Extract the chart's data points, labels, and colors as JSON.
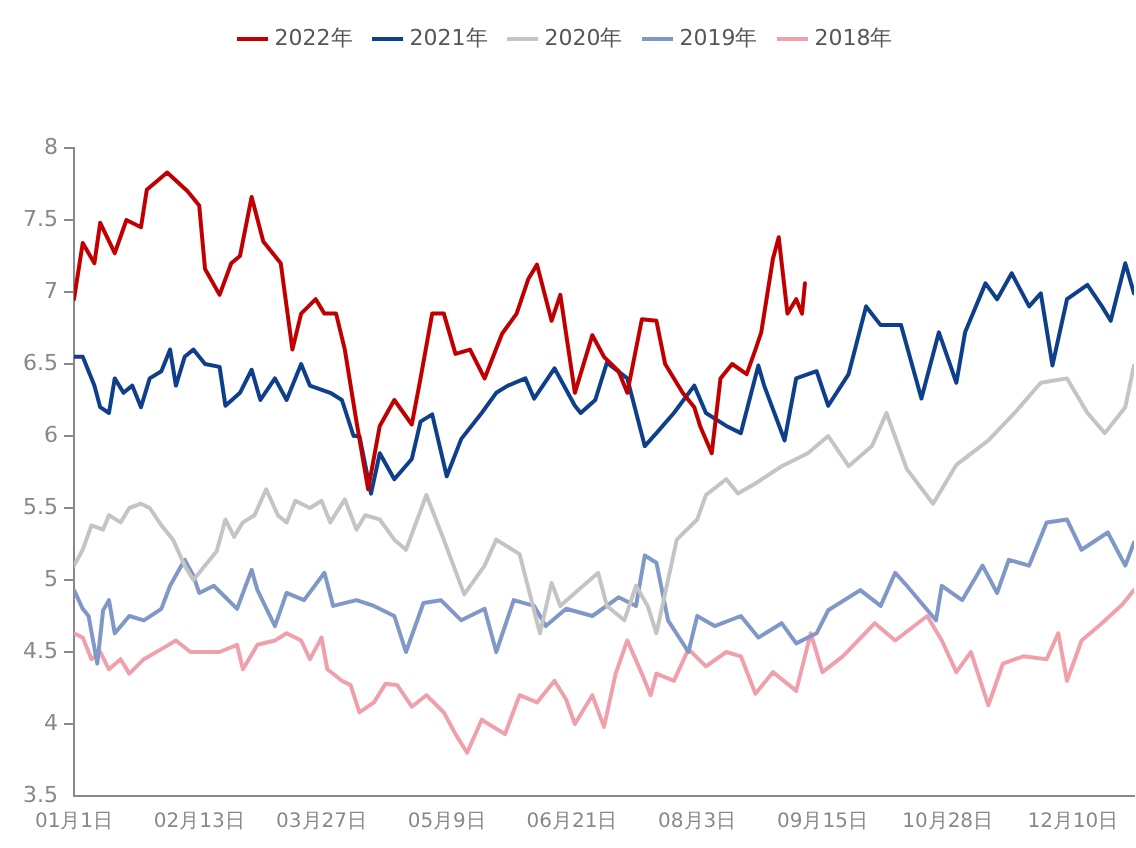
{
  "chart_data": {
    "type": "line",
    "legend": "top",
    "grid": false,
    "marker": "none",
    "line_style": "solid",
    "xlim": [
      "--01-01",
      "--12-31"
    ],
    "xticks": [
      {
        "value": "--01-01",
        "label": "01月1日"
      },
      {
        "value": "--02-13",
        "label": "02月13日"
      },
      {
        "value": "--03-27",
        "label": "03月27日"
      },
      {
        "value": "--05-09",
        "label": "05月9日"
      },
      {
        "value": "--06-21",
        "label": "06月21日"
      },
      {
        "value": "--08-03",
        "label": "08月3日"
      },
      {
        "value": "--09-15",
        "label": "09月15日"
      },
      {
        "value": "--10-28",
        "label": "10月28日"
      },
      {
        "value": "--12-10",
        "label": "12月10日"
      }
    ],
    "ylim": [
      3.5,
      8
    ],
    "yticks": [
      3.5,
      4,
      4.5,
      5,
      5.5,
      6,
      6.5,
      7,
      7.5,
      8
    ],
    "series": [
      {
        "name": "2022年",
        "color": "#c00000",
        "x": [
          "--01-01",
          "--01-04",
          "--01-08",
          "--01-10",
          "--01-15",
          "--01-19",
          "--01-24",
          "--01-26",
          "--02-02",
          "--02-09",
          "--02-13",
          "--02-15",
          "--02-20",
          "--02-24",
          "--02-27",
          "--03-03",
          "--03-07",
          "--03-13",
          "--03-17",
          "--03-20",
          "--03-25",
          "--03-28",
          "--04-01",
          "--04-04",
          "--04-08",
          "--04-12",
          "--04-16",
          "--04-21",
          "--04-27",
          "--04-30",
          "--05-04",
          "--05-08",
          "--05-12",
          "--05-17",
          "--05-22",
          "--05-28",
          "--06-02",
          "--06-06",
          "--06-09",
          "--06-14",
          "--06-17",
          "--06-22",
          "--06-28",
          "--07-02",
          "--07-07",
          "--07-10",
          "--07-15",
          "--07-20",
          "--07-23",
          "--07-29",
          "--08-02",
          "--08-04",
          "--08-08",
          "--08-11",
          "--08-15",
          "--08-20",
          "--08-23",
          "--08-25",
          "--08-29",
          "--08-31",
          "--09-03",
          "--09-06",
          "--09-08",
          "--09-09"
        ],
        "values": [
          6.95,
          7.34,
          7.2,
          7.48,
          7.27,
          7.5,
          7.45,
          7.71,
          7.83,
          7.7,
          7.6,
          7.16,
          6.98,
          7.2,
          7.25,
          7.66,
          7.35,
          7.2,
          6.6,
          6.85,
          6.95,
          6.85,
          6.85,
          6.6,
          6.1,
          5.63,
          6.07,
          6.25,
          6.08,
          6.4,
          6.85,
          6.85,
          6.57,
          6.6,
          6.4,
          6.71,
          6.85,
          7.09,
          7.19,
          6.8,
          6.98,
          6.3,
          6.7,
          6.55,
          6.45,
          6.3,
          6.81,
          6.8,
          6.5,
          6.3,
          6.2,
          6.07,
          5.88,
          6.4,
          6.5,
          6.43,
          6.6,
          6.72,
          7.23,
          7.38,
          6.85,
          6.95,
          6.85,
          7.06
        ]
      },
      {
        "name": "2021年",
        "color": "#0e3f8a",
        "x": [
          "--01-01",
          "--01-04",
          "--01-08",
          "--01-10",
          "--01-13",
          "--01-15",
          "--01-18",
          "--01-21",
          "--01-24",
          "--01-27",
          "--01-31",
          "--02-03",
          "--02-05",
          "--02-08",
          "--02-11",
          "--02-15",
          "--02-20",
          "--02-22",
          "--02-27",
          "--03-03",
          "--03-06",
          "--03-11",
          "--03-15",
          "--03-20",
          "--03-23",
          "--03-30",
          "--04-03",
          "--04-07",
          "--04-09",
          "--04-13",
          "--04-16",
          "--04-21",
          "--04-27",
          "--04-30",
          "--05-04",
          "--05-09",
          "--05-14",
          "--05-21",
          "--05-26",
          "--05-30",
          "--06-05",
          "--06-08",
          "--06-15",
          "--06-22",
          "--06-24",
          "--06-29",
          "--07-03",
          "--07-10",
          "--07-16",
          "--07-20",
          "--07-26",
          "--08-02",
          "--08-06",
          "--08-13",
          "--08-18",
          "--08-24",
          "--08-26",
          "--09-02",
          "--09-06",
          "--09-13",
          "--09-17",
          "--09-24",
          "--09-30",
          "--10-05",
          "--10-12",
          "--10-19",
          "--10-25",
          "--10-31",
          "--11-03",
          "--11-10",
          "--11-14",
          "--11-19",
          "--11-25",
          "--11-29",
          "--12-03",
          "--12-08",
          "--12-15",
          "--12-20",
          "--12-23",
          "--12-28",
          "--12-31"
        ],
        "values": [
          6.55,
          6.55,
          6.35,
          6.2,
          6.16,
          6.4,
          6.3,
          6.35,
          6.2,
          6.4,
          6.45,
          6.6,
          6.35,
          6.55,
          6.6,
          6.5,
          6.48,
          6.21,
          6.3,
          6.46,
          6.25,
          6.4,
          6.25,
          6.5,
          6.35,
          6.3,
          6.25,
          6.0,
          6.0,
          5.6,
          5.88,
          5.7,
          5.84,
          6.1,
          6.15,
          5.72,
          5.98,
          6.16,
          6.3,
          6.35,
          6.4,
          6.26,
          6.47,
          6.21,
          6.16,
          6.25,
          6.51,
          6.4,
          5.93,
          6.02,
          6.16,
          6.35,
          6.16,
          6.07,
          6.02,
          6.49,
          6.35,
          5.97,
          6.4,
          6.45,
          6.21,
          6.43,
          6.9,
          6.77,
          6.77,
          6.26,
          6.72,
          6.37,
          6.72,
          7.06,
          6.95,
          7.13,
          6.9,
          6.99,
          6.49,
          6.95,
          7.05,
          6.9,
          6.8,
          7.2,
          6.99
        ]
      },
      {
        "name": "2020年",
        "color": "#c4c4c4",
        "x": [
          "--01-01",
          "--01-04",
          "--01-07",
          "--01-11",
          "--01-13",
          "--01-17",
          "--01-20",
          "--01-24",
          "--01-27",
          "--01-31",
          "--02-04",
          "--02-08",
          "--02-11",
          "--02-15",
          "--02-19",
          "--02-22",
          "--02-25",
          "--02-28",
          "--03-04",
          "--03-08",
          "--03-12",
          "--03-15",
          "--03-18",
          "--03-23",
          "--03-27",
          "--03-30",
          "--04-04",
          "--04-08",
          "--04-11",
          "--04-16",
          "--04-21",
          "--04-25",
          "--05-02",
          "--05-08",
          "--05-15",
          "--05-22",
          "--05-26",
          "--06-03",
          "--06-10",
          "--06-14",
          "--06-17",
          "--06-22",
          "--06-30",
          "--07-03",
          "--07-09",
          "--07-13",
          "--07-17",
          "--07-20",
          "--07-27",
          "--08-03",
          "--08-06",
          "--08-13",
          "--08-17",
          "--08-23",
          "--09-01",
          "--09-10",
          "--09-17",
          "--09-24",
          "--10-02",
          "--10-07",
          "--10-14",
          "--10-23",
          "--10-31",
          "--11-11",
          "--11-20",
          "--11-29",
          "--12-08",
          "--12-15",
          "--12-21",
          "--12-28",
          "--12-31"
        ],
        "values": [
          5.1,
          5.21,
          5.38,
          5.35,
          5.45,
          5.4,
          5.5,
          5.53,
          5.5,
          5.38,
          5.28,
          5.1,
          5.0,
          5.1,
          5.2,
          5.42,
          5.3,
          5.4,
          5.45,
          5.63,
          5.45,
          5.4,
          5.55,
          5.5,
          5.55,
          5.4,
          5.56,
          5.35,
          5.45,
          5.42,
          5.28,
          5.21,
          5.59,
          5.28,
          4.9,
          5.1,
          5.28,
          5.18,
          4.63,
          4.98,
          4.82,
          4.91,
          5.05,
          4.82,
          4.72,
          4.96,
          4.82,
          4.63,
          5.28,
          5.42,
          5.59,
          5.7,
          5.6,
          5.67,
          5.79,
          5.88,
          6.0,
          5.79,
          5.93,
          6.16,
          5.77,
          5.53,
          5.8,
          5.97,
          6.16,
          6.37,
          6.4,
          6.16,
          6.02,
          6.2,
          6.49
        ]
      },
      {
        "name": "2019年",
        "color": "#7f98c7",
        "x": [
          "--01-01",
          "--01-04",
          "--01-06",
          "--01-09",
          "--01-11",
          "--01-13",
          "--01-15",
          "--01-20",
          "--01-25",
          "--01-31",
          "--02-03",
          "--02-08",
          "--02-11",
          "--02-13",
          "--02-18",
          "--02-22",
          "--02-26",
          "--03-03",
          "--03-05",
          "--03-11",
          "--03-15",
          "--03-21",
          "--03-28",
          "--03-31",
          "--04-08",
          "--04-14",
          "--04-21",
          "--04-25",
          "--05-01",
          "--05-07",
          "--05-14",
          "--05-22",
          "--05-26",
          "--06-01",
          "--06-08",
          "--06-12",
          "--06-19",
          "--06-28",
          "--07-07",
          "--07-13",
          "--07-16",
          "--07-20",
          "--07-24",
          "--07-31",
          "--08-03",
          "--08-09",
          "--08-18",
          "--08-24",
          "--09-01",
          "--09-06",
          "--09-13",
          "--09-17",
          "--09-28",
          "--10-05",
          "--10-10",
          "--10-14",
          "--10-24",
          "--10-26",
          "--11-02",
          "--11-09",
          "--11-14",
          "--11-18",
          "--11-25",
          "--12-01",
          "--12-08",
          "--12-13",
          "--12-22",
          "--12-28",
          "--12-31"
        ],
        "values": [
          4.93,
          4.8,
          4.75,
          4.42,
          4.79,
          4.86,
          4.63,
          4.75,
          4.72,
          4.8,
          4.96,
          5.14,
          5.03,
          4.91,
          4.96,
          4.88,
          4.8,
          5.07,
          4.93,
          4.68,
          4.91,
          4.86,
          5.05,
          4.82,
          4.86,
          4.82,
          4.75,
          4.5,
          4.84,
          4.86,
          4.72,
          4.8,
          4.5,
          4.86,
          4.82,
          4.68,
          4.8,
          4.75,
          4.88,
          4.82,
          5.17,
          5.12,
          4.72,
          4.5,
          4.75,
          4.68,
          4.75,
          4.6,
          4.7,
          4.56,
          4.63,
          4.79,
          4.93,
          4.82,
          5.05,
          4.96,
          4.72,
          4.96,
          4.86,
          5.1,
          4.91,
          5.14,
          5.1,
          5.4,
          5.42,
          5.21,
          5.33,
          5.1,
          5.26
        ]
      },
      {
        "name": "2018年",
        "color": "#f0a0aa",
        "x": [
          "--01-01",
          "--01-04",
          "--01-07",
          "--01-10",
          "--01-13",
          "--01-17",
          "--01-20",
          "--01-25",
          "--01-31",
          "--02-05",
          "--02-10",
          "--02-20",
          "--02-26",
          "--02-28",
          "--03-05",
          "--03-11",
          "--03-15",
          "--03-20",
          "--03-23",
          "--03-27",
          "--03-29",
          "--04-03",
          "--04-06",
          "--04-09",
          "--04-14",
          "--04-18",
          "--04-22",
          "--04-27",
          "--05-02",
          "--05-08",
          "--05-12",
          "--05-16",
          "--05-21",
          "--05-29",
          "--06-03",
          "--06-09",
          "--06-15",
          "--06-19",
          "--06-22",
          "--06-28",
          "--07-02",
          "--07-06",
          "--07-10",
          "--07-15",
          "--07-18",
          "--07-20",
          "--07-26",
          "--07-31",
          "--08-06",
          "--08-13",
          "--08-18",
          "--08-23",
          "--08-29",
          "--09-06",
          "--09-11",
          "--09-15",
          "--09-22",
          "--10-03",
          "--10-10",
          "--10-21",
          "--10-26",
          "--10-31",
          "--11-05",
          "--11-11",
          "--11-16",
          "--11-23",
          "--12-01",
          "--12-05",
          "--12-08",
          "--12-13",
          "--12-20",
          "--12-27",
          "--12-31"
        ],
        "values": [
          4.63,
          4.6,
          4.45,
          4.5,
          4.38,
          4.45,
          4.35,
          4.45,
          4.52,
          4.58,
          4.5,
          4.5,
          4.55,
          4.38,
          4.55,
          4.58,
          4.63,
          4.58,
          4.45,
          4.6,
          4.38,
          4.3,
          4.27,
          4.08,
          4.15,
          4.28,
          4.27,
          4.12,
          4.2,
          4.08,
          3.93,
          3.8,
          4.03,
          3.93,
          4.2,
          4.15,
          4.3,
          4.17,
          4.0,
          4.2,
          3.98,
          4.35,
          4.58,
          4.35,
          4.2,
          4.35,
          4.3,
          4.52,
          4.4,
          4.5,
          4.47,
          4.21,
          4.36,
          4.23,
          4.63,
          4.36,
          4.47,
          4.7,
          4.58,
          4.75,
          4.58,
          4.36,
          4.5,
          4.13,
          4.42,
          4.47,
          4.45,
          4.63,
          4.3,
          4.58,
          4.7,
          4.83,
          4.93
        ]
      }
    ]
  }
}
